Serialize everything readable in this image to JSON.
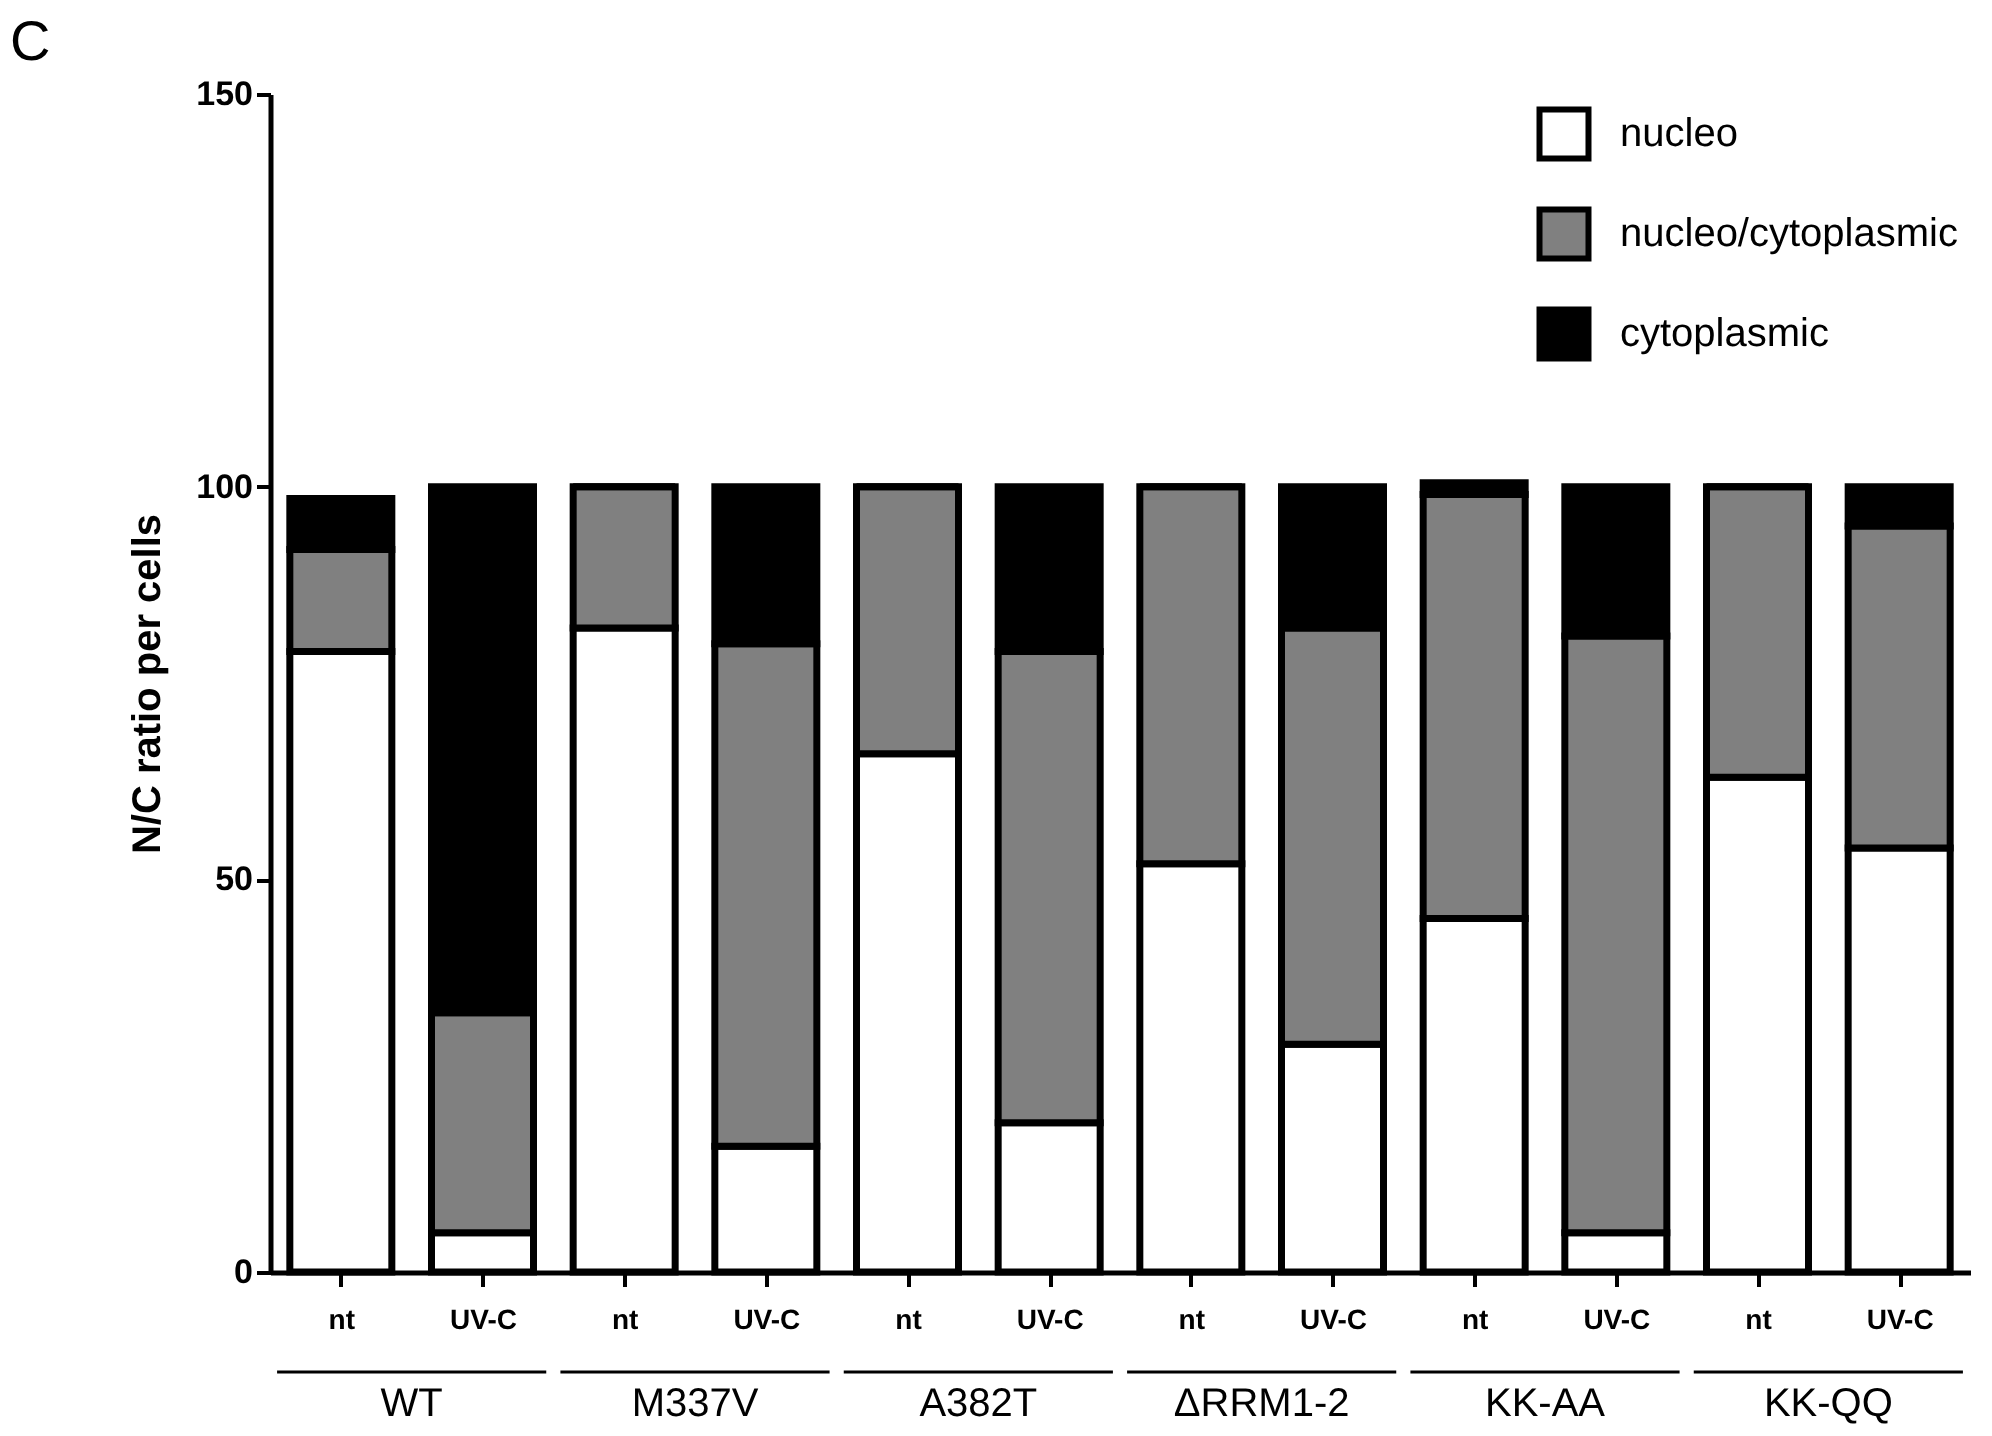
{
  "chart_data": {
    "type": "bar",
    "title": "C",
    "ylabel": "N/C ratio per cells",
    "stacked": true,
    "categories": [
      "nt",
      "UV-C",
      "nt",
      "UV-C",
      "nt",
      "UV-C",
      "nt",
      "UV-C",
      "nt",
      "UV-C",
      "nt",
      "UV-C"
    ],
    "series": [
      {
        "name": "nucleo",
        "color": "#ffffff",
        "values": [
          79,
          5,
          82,
          16,
          66,
          19,
          52,
          29,
          45,
          5,
          63,
          54
        ]
      },
      {
        "name": "nucleo/cytoplasmic",
        "color": "#808080",
        "values": [
          13,
          28,
          18,
          64,
          34,
          60,
          48,
          53,
          54,
          76,
          37,
          41
        ]
      },
      {
        "name": "cytoplasmic",
        "color": "#000000",
        "values": [
          6.5,
          67,
          0,
          20,
          0,
          21,
          0,
          18,
          1.5,
          19,
          0,
          5
        ]
      }
    ],
    "ylim": [
      0,
      150
    ],
    "yticks": [
      0,
      50,
      100,
      150
    ],
    "grid": false,
    "legend": "top right",
    "annotations": [
      "WT",
      "M337V",
      "A382T",
      "ΔRRM1-2",
      "KK-AA",
      "KK-QQ"
    ]
  }
}
